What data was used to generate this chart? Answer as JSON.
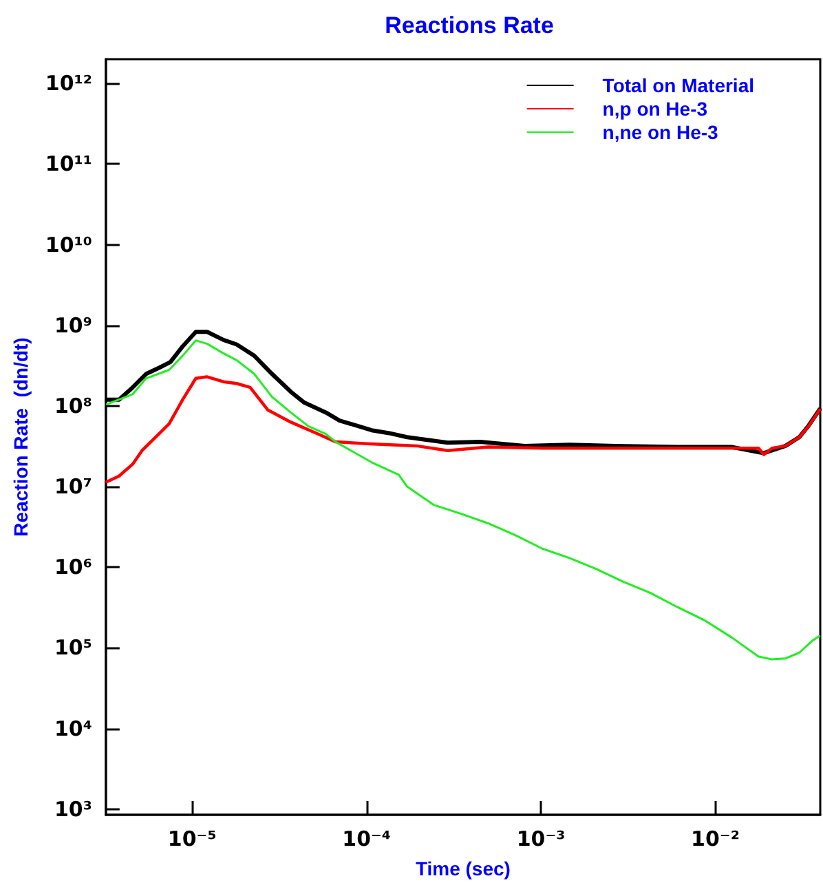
{
  "chart_data": {
    "type": "line",
    "title": "Reactions Rate",
    "xlabel": "Time (sec)",
    "ylabel": "Reaction Rate  (dn/dt)",
    "log": "xy",
    "grid": false,
    "legend": "top right",
    "marker": "none",
    "line_style": "solid",
    "xlim": [
      3.2e-06,
      0.04
    ],
    "ylim": [
      850,
      2000000000000.0
    ],
    "xticks": [
      {
        "value": 1e-05,
        "label": "10⁻⁵"
      },
      {
        "value": 0.0001,
        "label": "10⁻⁴"
      },
      {
        "value": 0.001,
        "label": "10⁻³"
      },
      {
        "value": 0.01,
        "label": "10⁻²"
      }
    ],
    "yticks": [
      {
        "value": 1000.0,
        "label": "10³"
      },
      {
        "value": 10000.0,
        "label": "10⁴"
      },
      {
        "value": 100000.0,
        "label": "10⁵"
      },
      {
        "value": 1000000.0,
        "label": "10⁶"
      },
      {
        "value": 10000000.0,
        "label": "10⁷"
      },
      {
        "value": 100000000.0,
        "label": "10⁸"
      },
      {
        "value": 1000000000.0,
        "label": "10⁹"
      },
      {
        "value": 10000000000.0,
        "label": "10¹⁰"
      },
      {
        "value": 100000000000.0,
        "label": "10¹¹"
      },
      {
        "value": 1000000000000.0,
        "label": "10¹²"
      }
    ],
    "series": [
      {
        "name": "Total on Material",
        "color": "#000000",
        "x": [
          3.25e-06,
          3.81e-06,
          4.56e-06,
          5.45e-06,
          6.52e-06,
          7.5e-06,
          8.83e-06,
          1.05e-05,
          1.22e-05,
          1.51e-05,
          1.8e-05,
          2.27e-05,
          2.87e-05,
          3.68e-05,
          4.4e-05,
          5.85e-05,
          7e-05,
          0.000107,
          0.000135,
          0.000171,
          0.000292,
          0.000448,
          0.000807,
          0.00146,
          0.00267,
          0.00607,
          0.0124,
          0.019,
          0.0253,
          0.0303,
          0.0343,
          0.0396
        ],
        "values": [
          120000000.0,
          120000000.0,
          170000000.0,
          250000000.0,
          300000000.0,
          350000000.0,
          550000000.0,
          830000000.0,
          830000000.0,
          660000000.0,
          580000000.0,
          420000000.0,
          250000000.0,
          150000000.0,
          110000000.0,
          83000000.0,
          66000000.0,
          50000000.0,
          46000000.0,
          41000000.0,
          35000000.0,
          36000000.0,
          32000000.0,
          33000000.0,
          32000000.0,
          31000000.0,
          31000000.0,
          26000000.0,
          32000000.0,
          41000000.0,
          57000000.0,
          90000000.0
        ]
      },
      {
        "name": "n,p on He-3",
        "color": "#ff0000",
        "x": [
          3.25e-06,
          3.81e-06,
          4.56e-06,
          5.16e-06,
          7.38e-06,
          8.83e-06,
          1.05e-05,
          1.22e-05,
          1.51e-05,
          1.8e-05,
          2.15e-05,
          2.72e-05,
          3.68e-05,
          5.26e-05,
          6.63e-05,
          0.0001,
          0.000194,
          0.000292,
          0.000499,
          0.00102,
          0.00208,
          0.00425,
          0.00867,
          0.0177,
          0.019,
          0.0212,
          0.0253,
          0.0303,
          0.0343,
          0.0396
        ],
        "values": [
          11500000.0,
          13500000.0,
          19000000.0,
          28000000.0,
          60000000.0,
          120000000.0,
          220000000.0,
          230000000.0,
          200000000.0,
          190000000.0,
          170000000.0,
          89000000.0,
          63000000.0,
          45000000.0,
          36000000.0,
          34000000.0,
          32000000.0,
          28000000.0,
          31000000.0,
          30000000.0,
          30000000.0,
          30000000.0,
          30000000.0,
          30000000.0,
          25000000.0,
          30000000.0,
          32000000.0,
          41000000.0,
          56000000.0,
          89000000.0
        ]
      },
      {
        "name": "n,ne on He-3",
        "color": "#22ee22",
        "x": [
          3.25e-06,
          4.56e-06,
          5.45e-06,
          7.38e-06,
          8.83e-06,
          1.05e-05,
          1.22e-05,
          1.51e-05,
          1.8e-05,
          2.27e-05,
          2.87e-05,
          3.68e-05,
          4.64e-05,
          5.85e-05,
          6.63e-05,
          0.000107,
          0.000153,
          0.000171,
          0.000244,
          0.000349,
          0.000499,
          0.000713,
          0.00102,
          0.00146,
          0.00208,
          0.00297,
          0.00425,
          0.00607,
          0.00867,
          0.0124,
          0.0177,
          0.0212,
          0.0253,
          0.0303,
          0.0361,
          0.0396
        ],
        "values": [
          105000000.0,
          140000000.0,
          220000000.0,
          280000000.0,
          420000000.0,
          650000000.0,
          590000000.0,
          450000000.0,
          370000000.0,
          250000000.0,
          130000000.0,
          83000000.0,
          56000000.0,
          45000000.0,
          36000000.0,
          20000000.0,
          14000000.0,
          10000000.0,
          5900000.0,
          4600000.0,
          3500000.0,
          2500000.0,
          1700000.0,
          1300000.0,
          950000.0,
          660000.0,
          480000.0,
          320000.0,
          220000.0,
          135000.0,
          78000.0,
          72000.0,
          74000.0,
          87000.0,
          123000.0,
          140000.0
        ]
      }
    ]
  }
}
